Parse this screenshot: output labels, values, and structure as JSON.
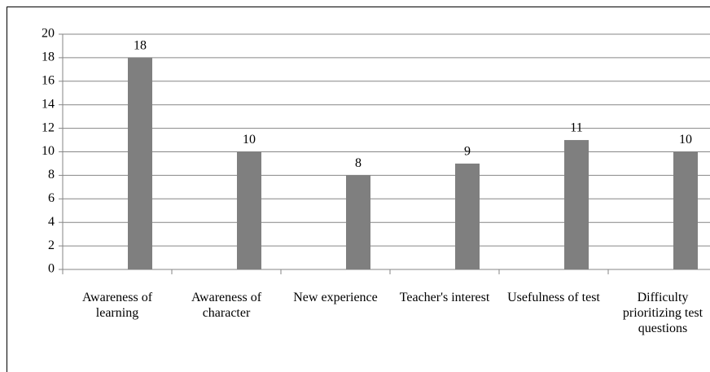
{
  "chart_data": {
    "type": "bar",
    "categories": [
      "Awareness of learning",
      "Awareness of character",
      "New experience",
      "Teacher's interest",
      "Usefulness of test",
      "Difficulty prioritizing test questions"
    ],
    "values": [
      18,
      10,
      8,
      9,
      11,
      10
    ],
    "color": "#7f7f7f",
    "ylim": [
      0,
      20
    ],
    "yticks": [
      0,
      2,
      4,
      6,
      8,
      10,
      12,
      14,
      16,
      18,
      20
    ],
    "grid": true
  }
}
